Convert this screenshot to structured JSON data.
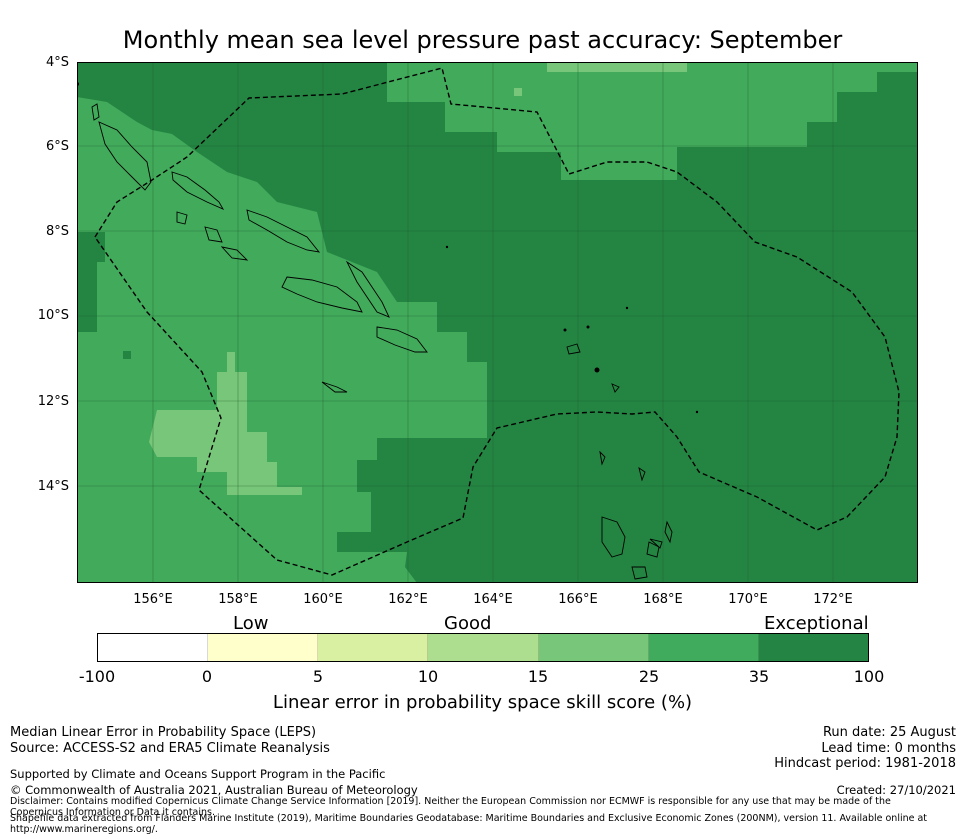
{
  "title": "Monthly mean sea level pressure past accuracy: September",
  "map": {
    "lat_labels": [
      "4°S",
      "6°S",
      "8°S",
      "10°S",
      "12°S",
      "14°S"
    ],
    "lon_labels": [
      "156°E",
      "158°E",
      "160°E",
      "162°E",
      "164°E",
      "166°E",
      "168°E",
      "170°E",
      "172°E"
    ],
    "lon_range": [
      154.2,
      174.0
    ],
    "lat_range": [
      -4.0,
      -16.25
    ],
    "zone_colors": {
      "exceptional": "#248542",
      "very_good": "#42aa5b",
      "good": "#78c679",
      "background_land": "#ffffff",
      "coast": "#000000",
      "eez_line": "#000000"
    }
  },
  "colorbar": {
    "category_labels": [
      "Low",
      "Good",
      "Exceptional"
    ],
    "ticks": [
      "-100",
      "0",
      "5",
      "10",
      "15",
      "25",
      "35",
      "100"
    ],
    "colors": [
      "#ffffff",
      "#ffffcc",
      "#d9f0a3",
      "#addd8e",
      "#78c679",
      "#41ab5d",
      "#238443"
    ],
    "title": "Linear error in probability space skill score (%)"
  },
  "footer": {
    "left_line1": "Median Linear Error in Probability Space (LEPS)",
    "left_line2": "Source: ACCESS-S2 and ERA5 Climate Reanalysis",
    "right_line1": "Run date: 25 August",
    "right_line2": "Lead time: 0 months",
    "right_line3": "Hindcast period: 1981-2018",
    "support": "Supported by Climate and Oceans Support Program in the Pacific",
    "copyright": "© Commonwealth of Australia 2021, Australian Bureau of Meteorology",
    "created": "Created: 27/10/2021",
    "disclaimer": "Disclaimer: Contains modified Copernicus Climate Change Service Information [2019]. Neither the European Commission nor ECMWF is responsible for any use that may be made of the Copernicus Information or Data it contains.",
    "shapefile": "Shapefile data extracted from Flanders Marine Institute (2019), Maritime Boundaries Geodatabase: Maritime Boundaries and Exclusive Economic Zones (200NM), version 11. Available online at http://www.marineregions.org/."
  }
}
